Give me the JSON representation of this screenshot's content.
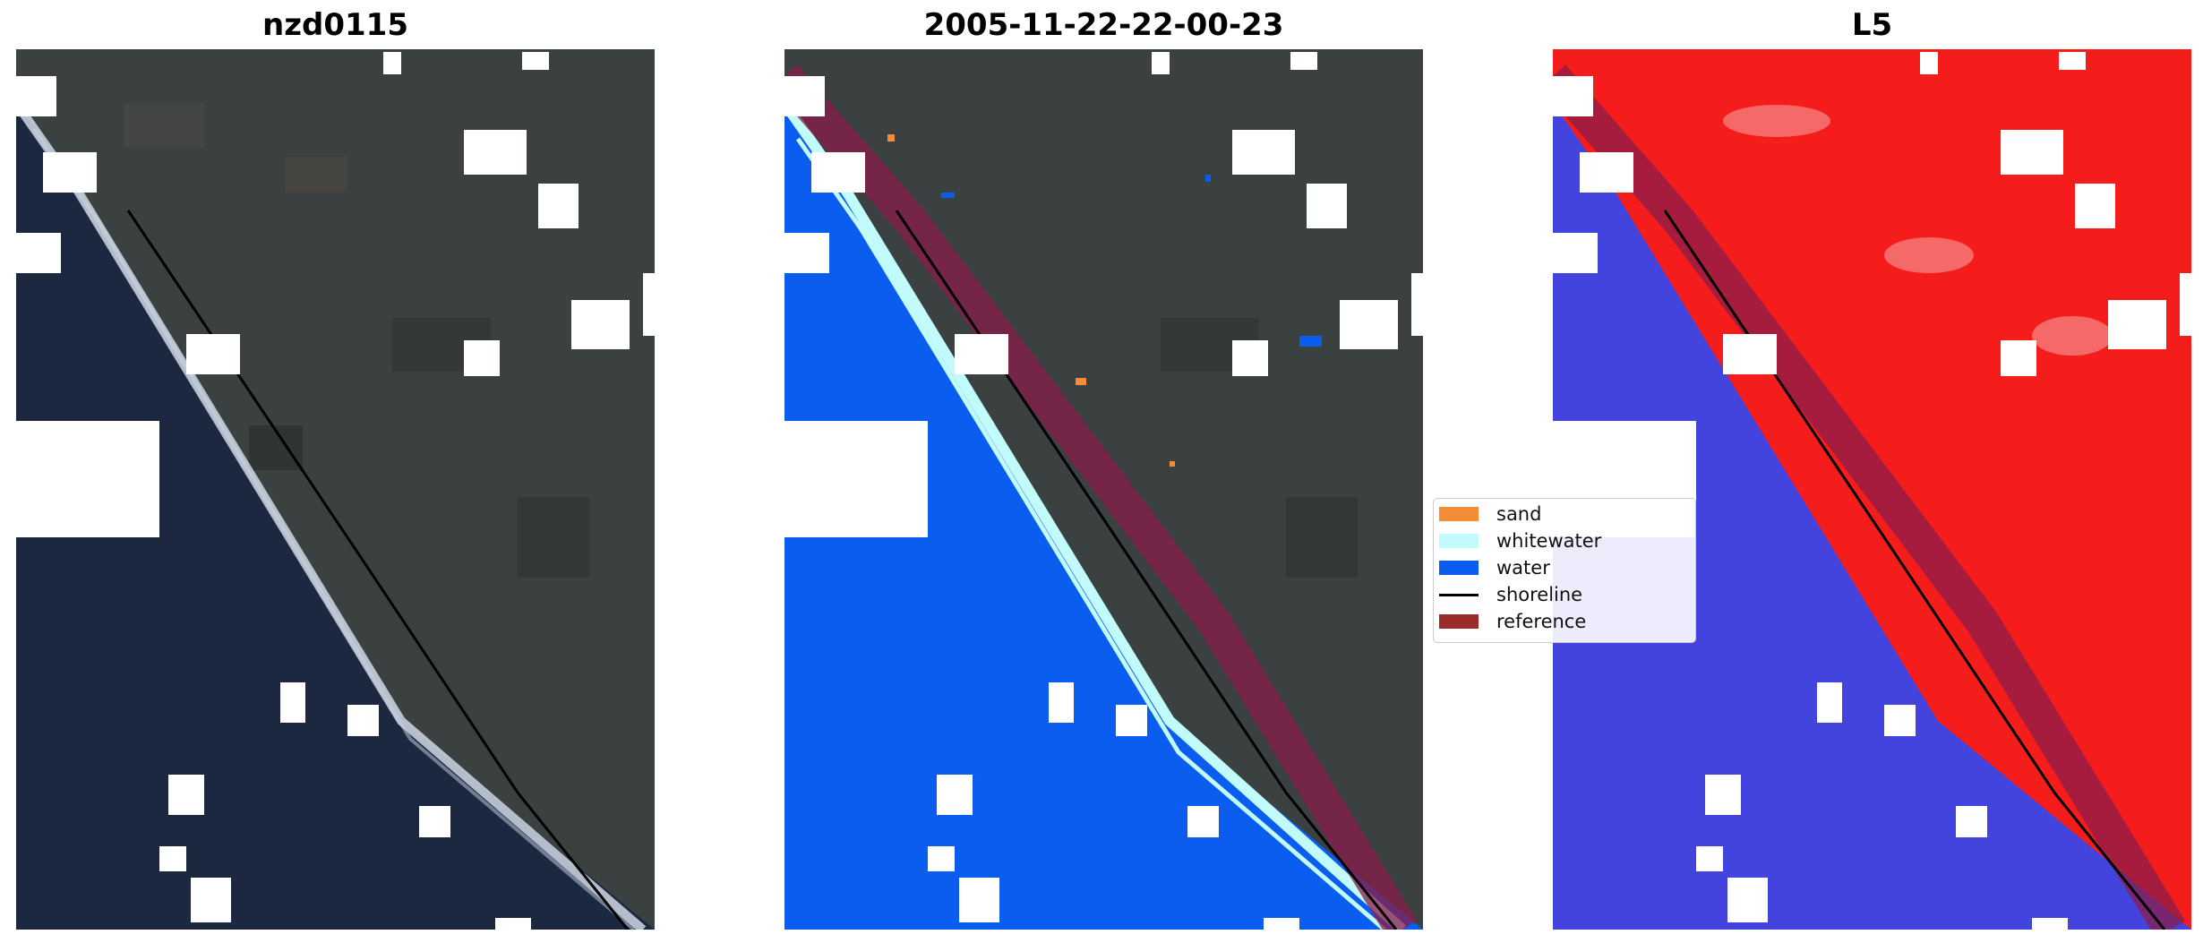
{
  "panels": [
    {
      "title": "nzd0115"
    },
    {
      "title": "2005-11-22-22-00-23"
    },
    {
      "title": "L5"
    }
  ],
  "legend": {
    "items": [
      {
        "label": "sand",
        "color": "#f58d37"
      },
      {
        "label": "whitewater",
        "color": "#c2fbfb"
      },
      {
        "label": "water",
        "color": "#0a5dee"
      },
      {
        "label": "shoreline",
        "color": "#000000"
      },
      {
        "label": "reference",
        "color": "#9a2b2b"
      }
    ]
  },
  "colors": {
    "ocean_rgb": "#1b2840",
    "land_rgb": "#3b4140",
    "class_water": "#0a5dee",
    "mndwi_water": "#4343dd",
    "mndwi_land": "#f51c1c",
    "cloud_mask": "#ffffff",
    "reference_band": "#8a1c4a"
  }
}
